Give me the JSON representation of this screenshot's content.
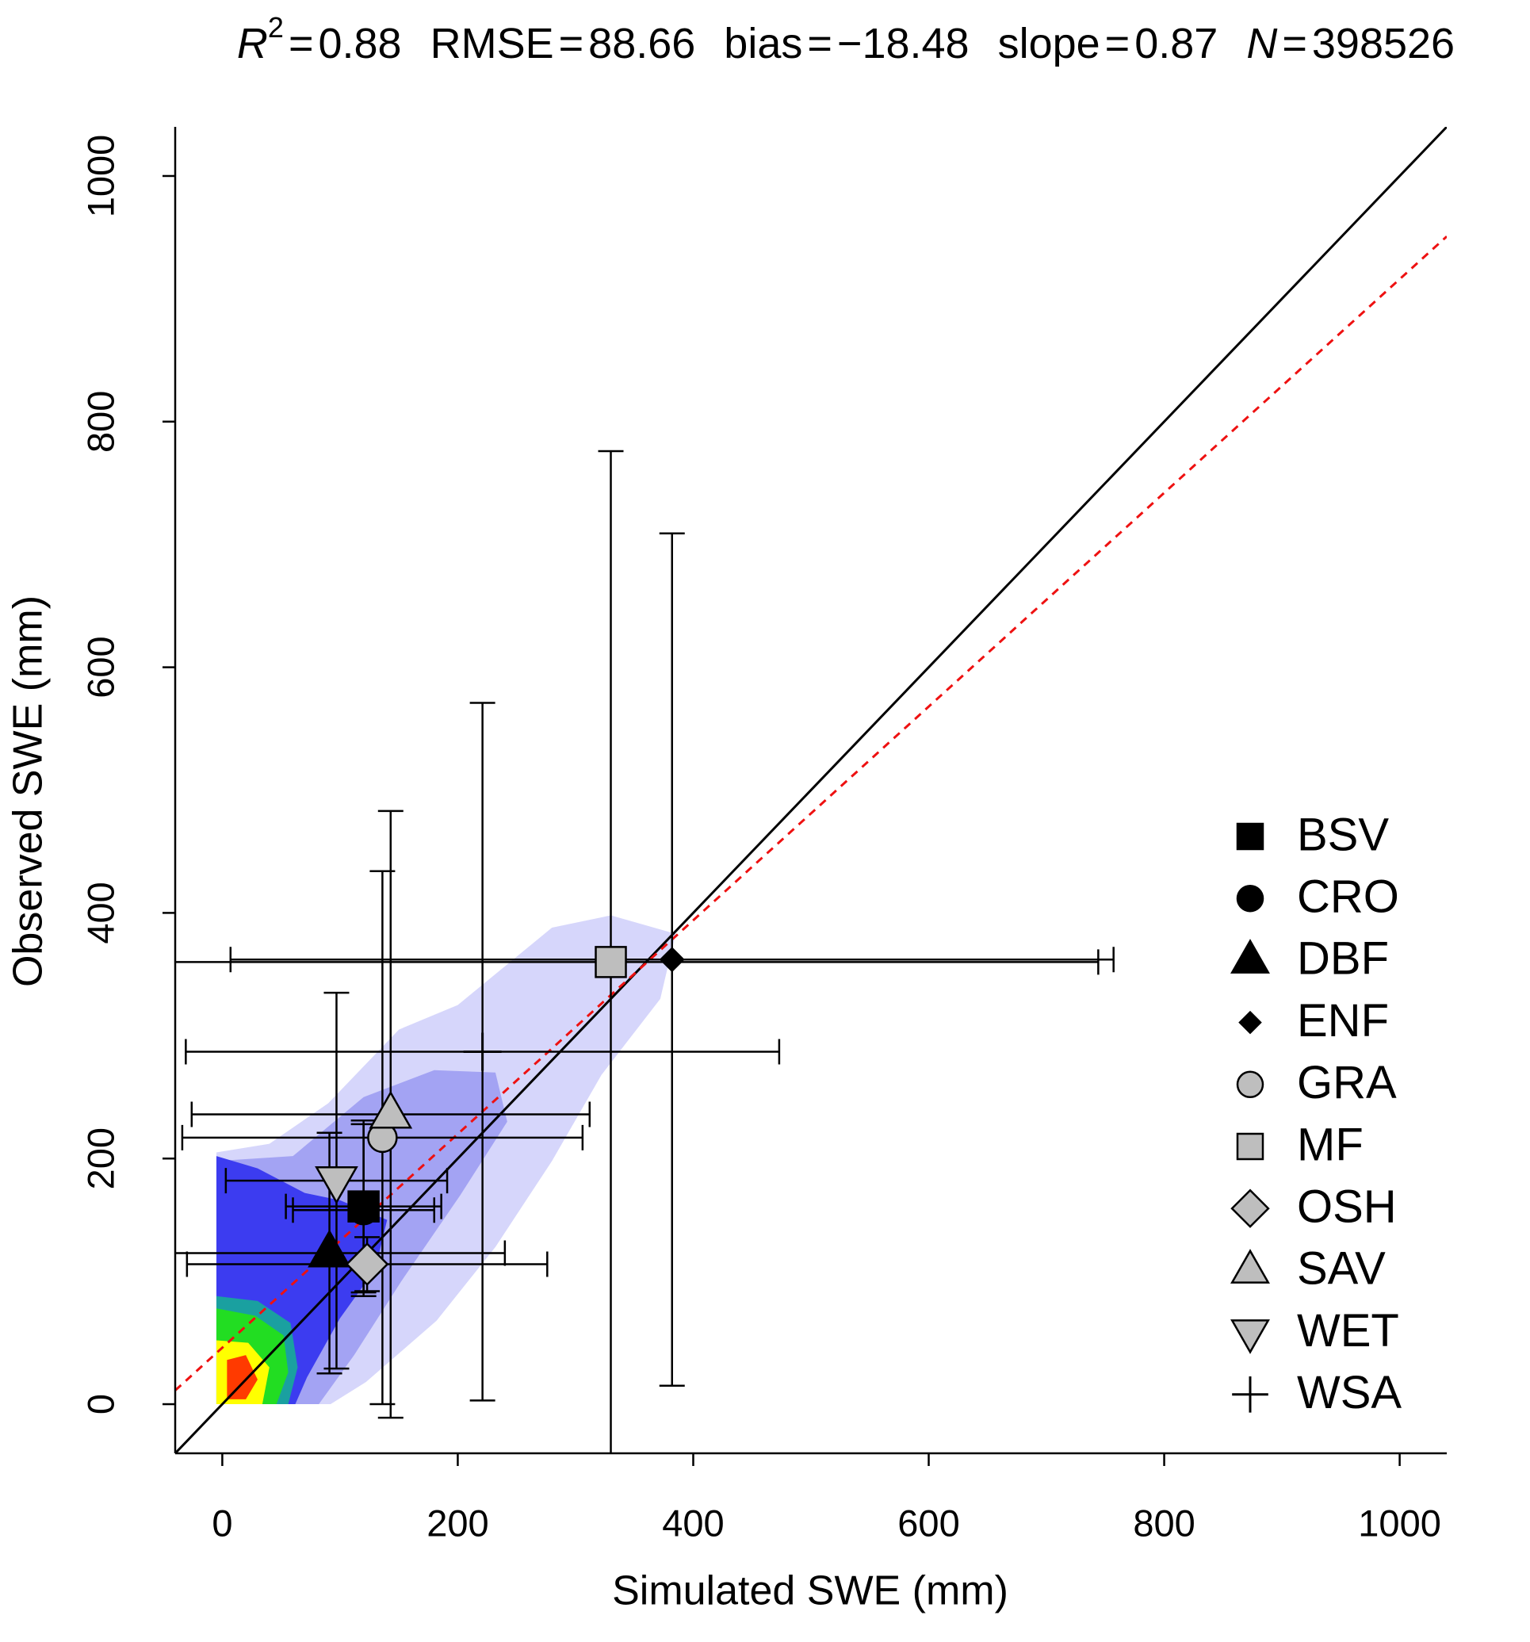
{
  "chart_data": {
    "type": "scatter",
    "stats": [
      {
        "name": "R",
        "superscript": "2",
        "italic": true,
        "relation": "=",
        "value": 0.88
      },
      {
        "name": "RMSE",
        "relation": "=",
        "value": 88.66
      },
      {
        "name": "bias",
        "relation": "=",
        "value": -18.48,
        "label": "−18.48"
      },
      {
        "name": "slope",
        "relation": "=",
        "value": 0.87
      },
      {
        "name": "N",
        "italic": true,
        "relation": "=",
        "value": 398526
      }
    ],
    "x_label": "Simulated SWE (mm)",
    "y_label": "Observed SWE (mm)",
    "xlim": [
      -40,
      1040
    ],
    "ylim": [
      -40,
      1040
    ],
    "xticks": [
      0,
      200,
      400,
      600,
      800,
      1000
    ],
    "yticks": [
      0,
      200,
      400,
      600,
      800,
      1000
    ],
    "identity_line": true,
    "fit_line": {
      "intercept": 46,
      "color": "#ee1111"
    },
    "legend": "right",
    "series": [
      {
        "name": "BSV",
        "marker": "square",
        "color": "#000000",
        "x": 120,
        "y": 161,
        "xerr": 66,
        "yerr": 70
      },
      {
        "name": "CRO",
        "marker": "circle",
        "color": "#000000",
        "x": 120,
        "y": 158,
        "xerr": 60,
        "yerr": 70
      },
      {
        "name": "DBF",
        "marker": "triangle-up",
        "color": "#000000",
        "x": 91,
        "y": 123,
        "xerr": 149,
        "yerr": 98
      },
      {
        "name": "ENF",
        "marker": "diamond",
        "color": "#000000",
        "x": 382,
        "y": 362,
        "xerr": 375,
        "yerr": 347
      },
      {
        "name": "GRA",
        "marker": "circle",
        "color": "#bebebe",
        "x": 136,
        "y": 217,
        "xerr": 170,
        "yerr": 217
      },
      {
        "name": "MF",
        "marker": "square",
        "color": "#bebebe",
        "x": 330,
        "y": 360,
        "xerr": 414,
        "yerr": 416
      },
      {
        "name": "OSH",
        "marker": "diamond",
        "color": "#bebebe",
        "x": 123,
        "y": 114,
        "xerr": 153,
        "yerr": 22
      },
      {
        "name": "SAV",
        "marker": "triangle-up",
        "color": "#bebebe",
        "x": 143,
        "y": 236,
        "xerr": 169,
        "yerr": 247
      },
      {
        "name": "WET",
        "marker": "triangle-down",
        "color": "#bebebe",
        "x": 97,
        "y": 182,
        "xerr": 94,
        "yerr": 153
      },
      {
        "name": "WSA",
        "marker": "plus",
        "color": "#000000",
        "x": 221,
        "y": 287,
        "xerr": 252,
        "yerr": 284
      }
    ]
  }
}
